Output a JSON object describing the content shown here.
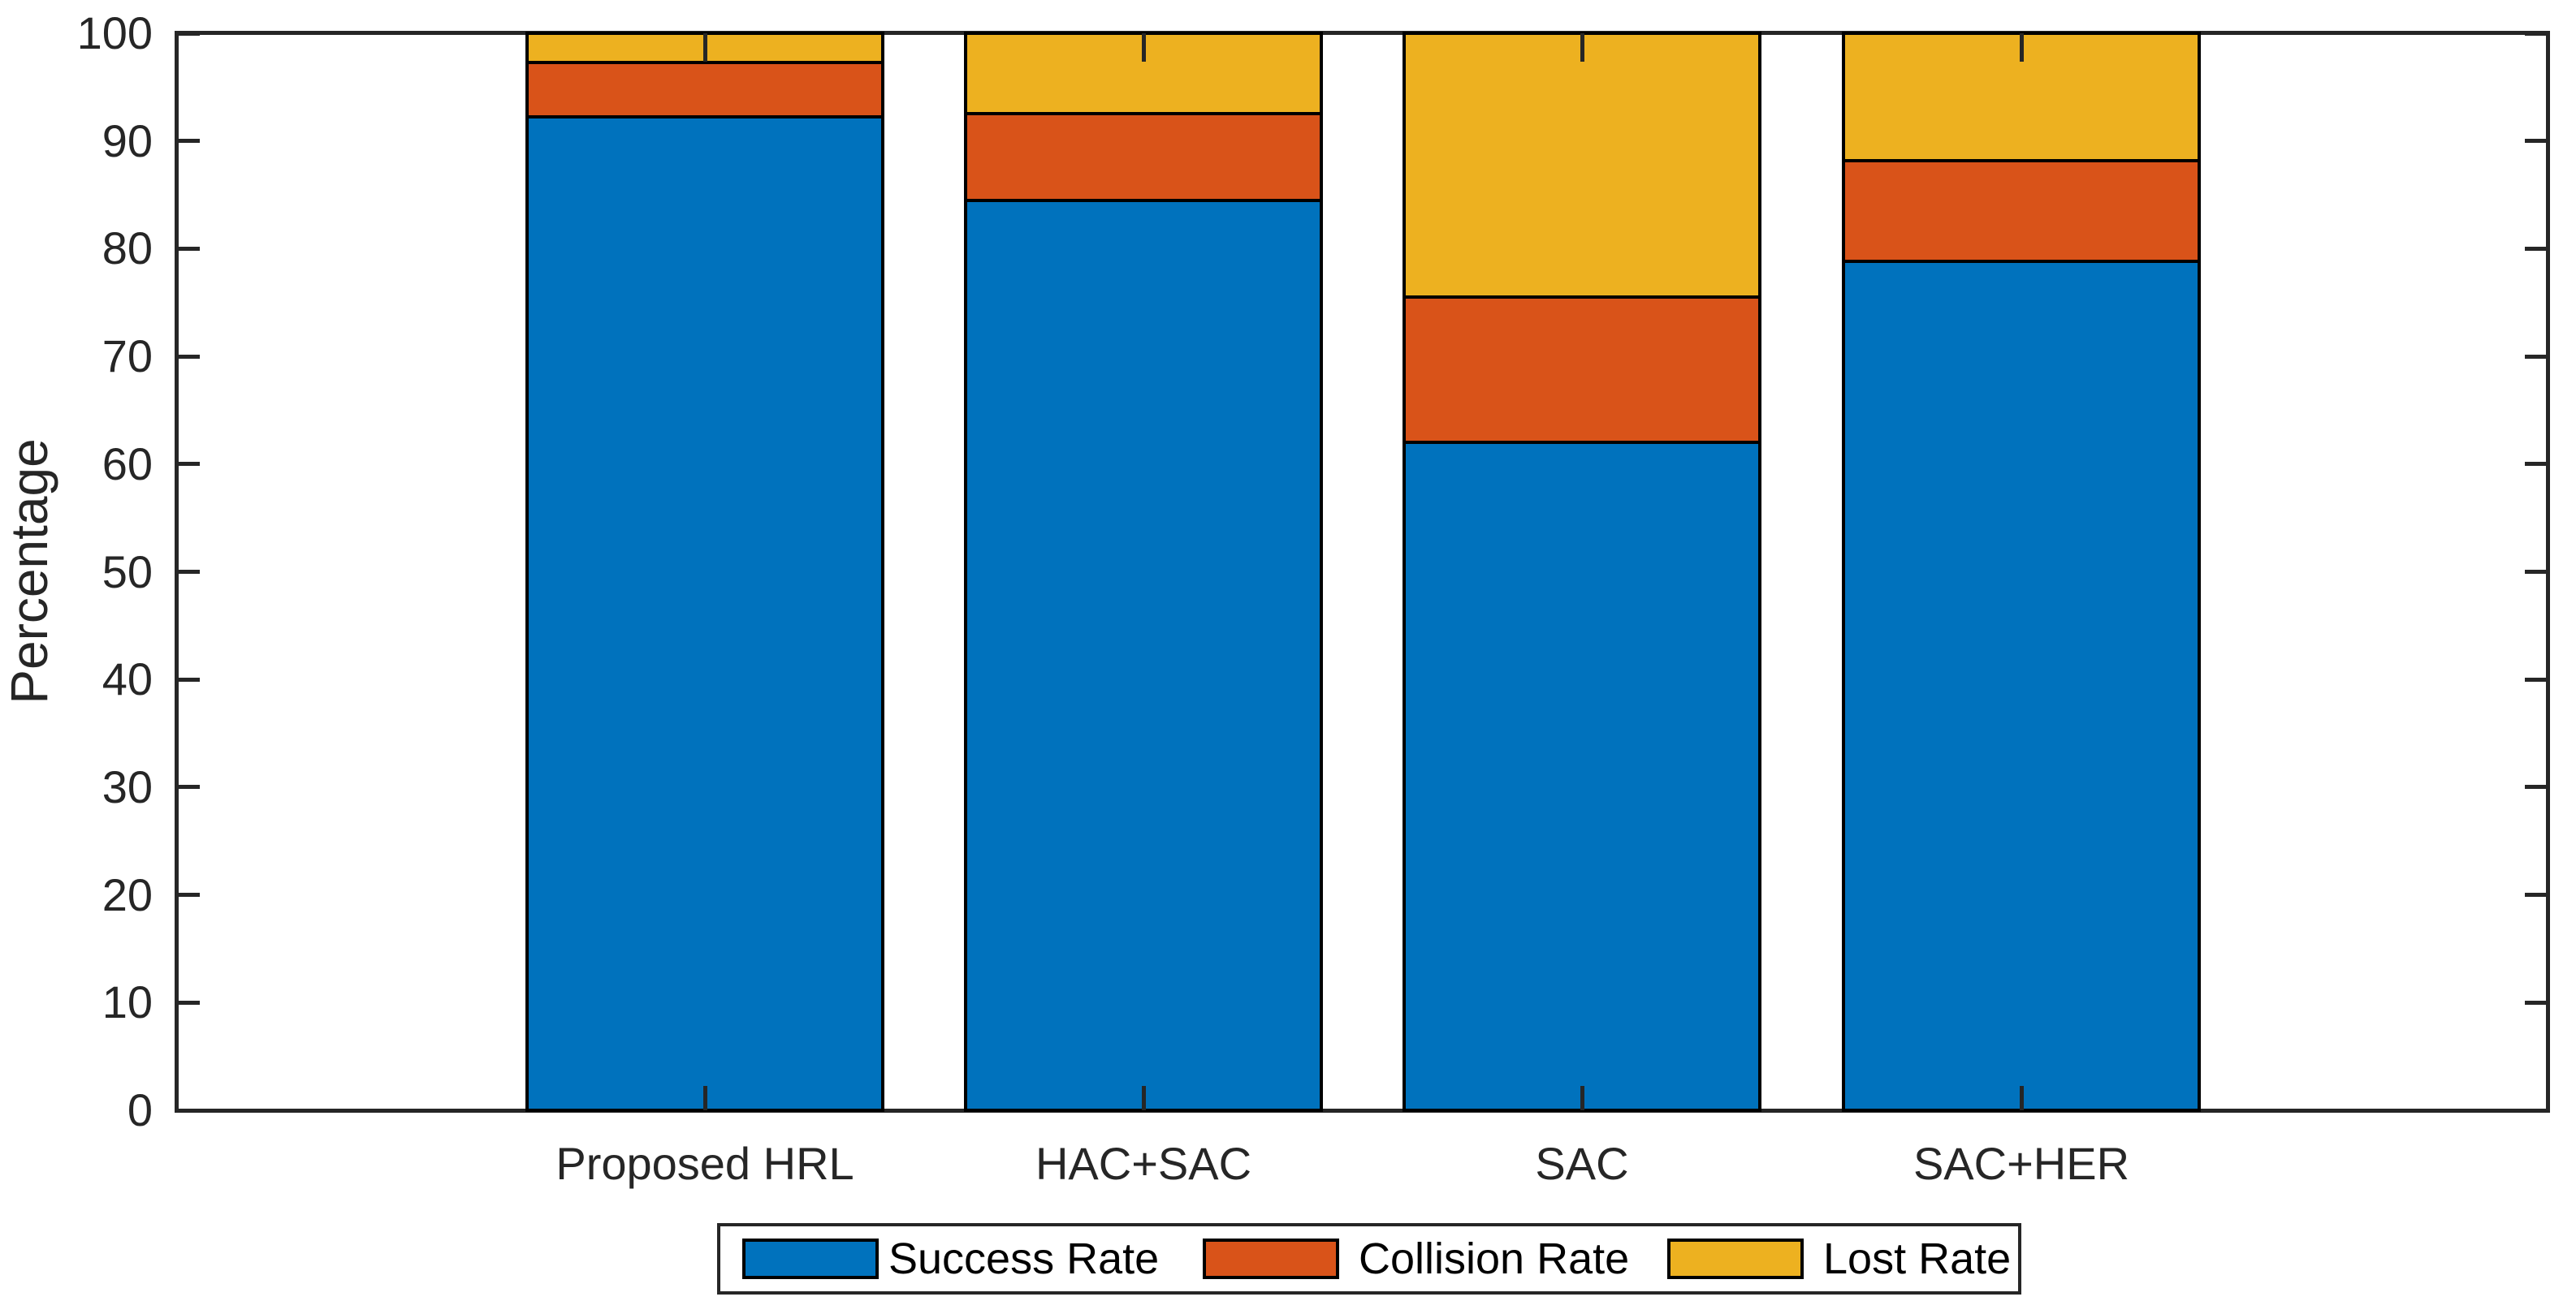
{
  "figure": {
    "background": "#ffffff",
    "axes_color": "#262626",
    "bar_edge_color": "#000000"
  },
  "chart_data": {
    "type": "bar",
    "stacked": true,
    "orientation": "vertical",
    "title": "",
    "xlabel": "",
    "ylabel": "Percentage",
    "ylim": [
      0,
      100
    ],
    "yticks": [
      0,
      10,
      20,
      30,
      40,
      50,
      60,
      70,
      80,
      90,
      100
    ],
    "grid": false,
    "categories": [
      "Proposed HRL",
      "HAC+SAC",
      "SAC",
      "SAC+HER"
    ],
    "series": [
      {
        "name": "Success Rate",
        "color": "#0072BD",
        "values": [
          92.3,
          84.6,
          62.1,
          78.9
        ]
      },
      {
        "name": "Collision Rate",
        "color": "#D95319",
        "values": [
          5.1,
          8.1,
          13.5,
          9.4
        ]
      },
      {
        "name": "Lost Rate",
        "color": "#EDB120",
        "values": [
          2.6,
          7.3,
          24.4,
          11.7
        ]
      }
    ],
    "legend": {
      "position": "bottom-outside",
      "labels": [
        "Success Rate",
        "Collision Rate",
        "Lost Rate"
      ]
    }
  }
}
